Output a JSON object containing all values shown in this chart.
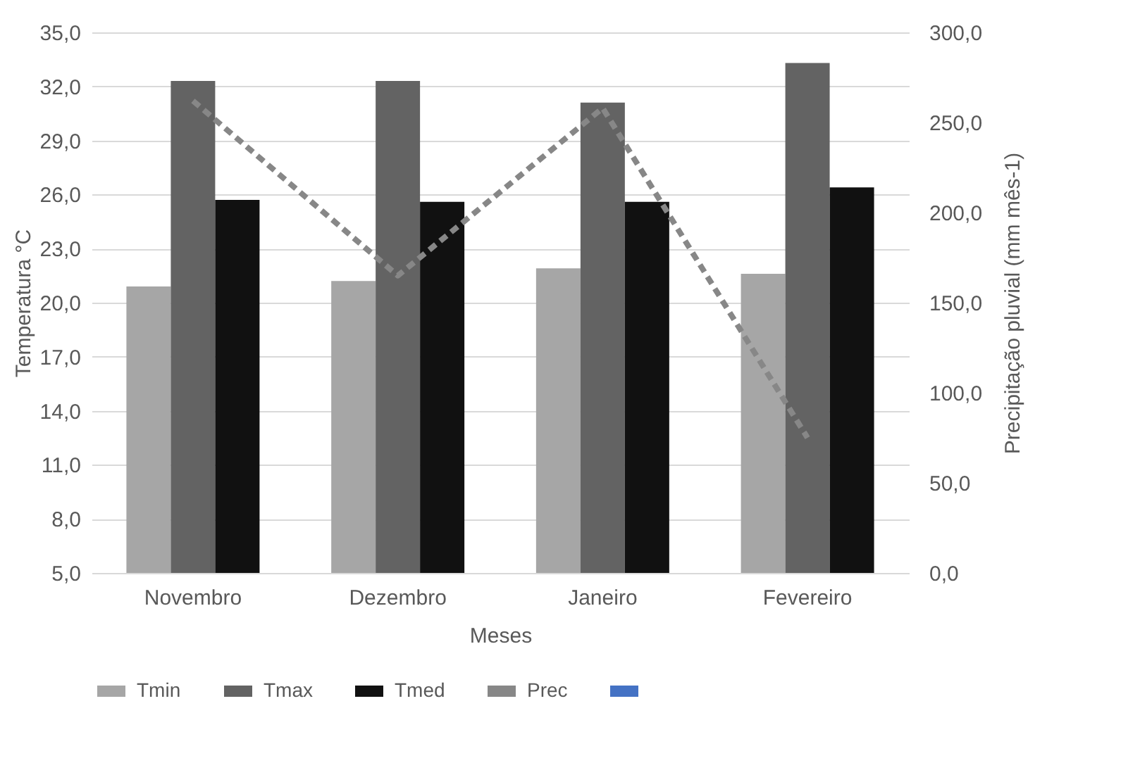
{
  "chart_data": {
    "type": "bar",
    "xlabel": "Meses",
    "ylabel": "Temperatura °C",
    "y2label": "Precipitação pluvial (mm mês-1)",
    "categories": [
      "Novembro",
      "Dezembro",
      "Janeiro",
      "Fevereiro"
    ],
    "series": [
      {
        "name": "Tmin",
        "color": "#a6a6a6",
        "values": [
          20.9,
          21.2,
          21.9,
          21.6
        ]
      },
      {
        "name": "Tmax",
        "color": "#636363",
        "values": [
          32.3,
          32.3,
          31.1,
          33.3
        ]
      },
      {
        "name": "Tmed",
        "color": "#111111",
        "values": [
          25.7,
          25.6,
          25.6,
          26.4
        ]
      },
      {
        "name": "Prec",
        "type": "line",
        "axis": "y2",
        "line_style": "dashed",
        "color": "#878787",
        "values": [
          262,
          165,
          258,
          75
        ]
      },
      {
        "type": "line",
        "axis": "y2",
        "line_style": "solid",
        "color": "#4472c4",
        "values": [
          null,
          null,
          null,
          null
        ]
      }
    ],
    "ylim": [
      5,
      35
    ],
    "yticks": [
      {
        "value": 5,
        "label": "5,0"
      },
      {
        "value": 8,
        "label": "8,0"
      },
      {
        "value": 11,
        "label": "11,0"
      },
      {
        "value": 14,
        "label": "14,0"
      },
      {
        "value": 17,
        "label": "17,0"
      },
      {
        "value": 20,
        "label": "20,0"
      },
      {
        "value": 23,
        "label": "23,0"
      },
      {
        "value": 26,
        "label": "26,0"
      },
      {
        "value": 29,
        "label": "29,0"
      },
      {
        "value": 32,
        "label": "32,0"
      },
      {
        "value": 35,
        "label": "35,0"
      }
    ],
    "y2lim": [
      0,
      300
    ],
    "y2ticks": [
      {
        "value": 0,
        "label": "0,0"
      },
      {
        "value": 50,
        "label": "50,0"
      },
      {
        "value": 100,
        "label": "100,0"
      },
      {
        "value": 150,
        "label": "150,0"
      },
      {
        "value": 200,
        "label": "200,0"
      },
      {
        "value": 250,
        "label": "250,0"
      },
      {
        "value": 300,
        "label": "300,0"
      }
    ],
    "grid": "y",
    "legend": "bottom"
  }
}
